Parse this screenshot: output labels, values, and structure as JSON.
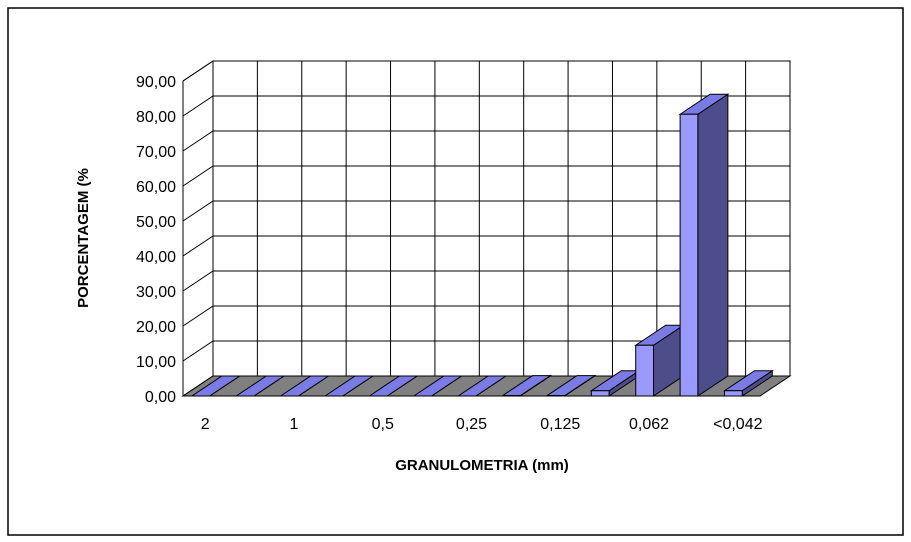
{
  "chart_data": {
    "type": "bar3d",
    "y_label": "PORCENTAGEM (%",
    "x_label": "GRANULOMETRIA (mm)",
    "categories": [
      "2",
      null,
      "1",
      null,
      "0,5",
      null,
      "0,25",
      null,
      "0,125",
      null,
      "0,062",
      null,
      "<0,042"
    ],
    "values": [
      0,
      0,
      0,
      0,
      0,
      0,
      0,
      0.1,
      0.1,
      1.5,
      14.5,
      80.5,
      1.5
    ],
    "color": "#9999ff",
    "ylim": [
      0,
      90
    ],
    "yticks": [
      {
        "value": 0,
        "label": "0,00"
      },
      {
        "value": 10,
        "label": "10,00"
      },
      {
        "value": 20,
        "label": "20,00"
      },
      {
        "value": 30,
        "label": "30,00"
      },
      {
        "value": 40,
        "label": "40,00"
      },
      {
        "value": 50,
        "label": "50,00"
      },
      {
        "value": 60,
        "label": "60,00"
      },
      {
        "value": 70,
        "label": "70,00"
      },
      {
        "value": 80,
        "label": "80,00"
      },
      {
        "value": 90,
        "label": "90,00"
      }
    ],
    "grid": true
  }
}
